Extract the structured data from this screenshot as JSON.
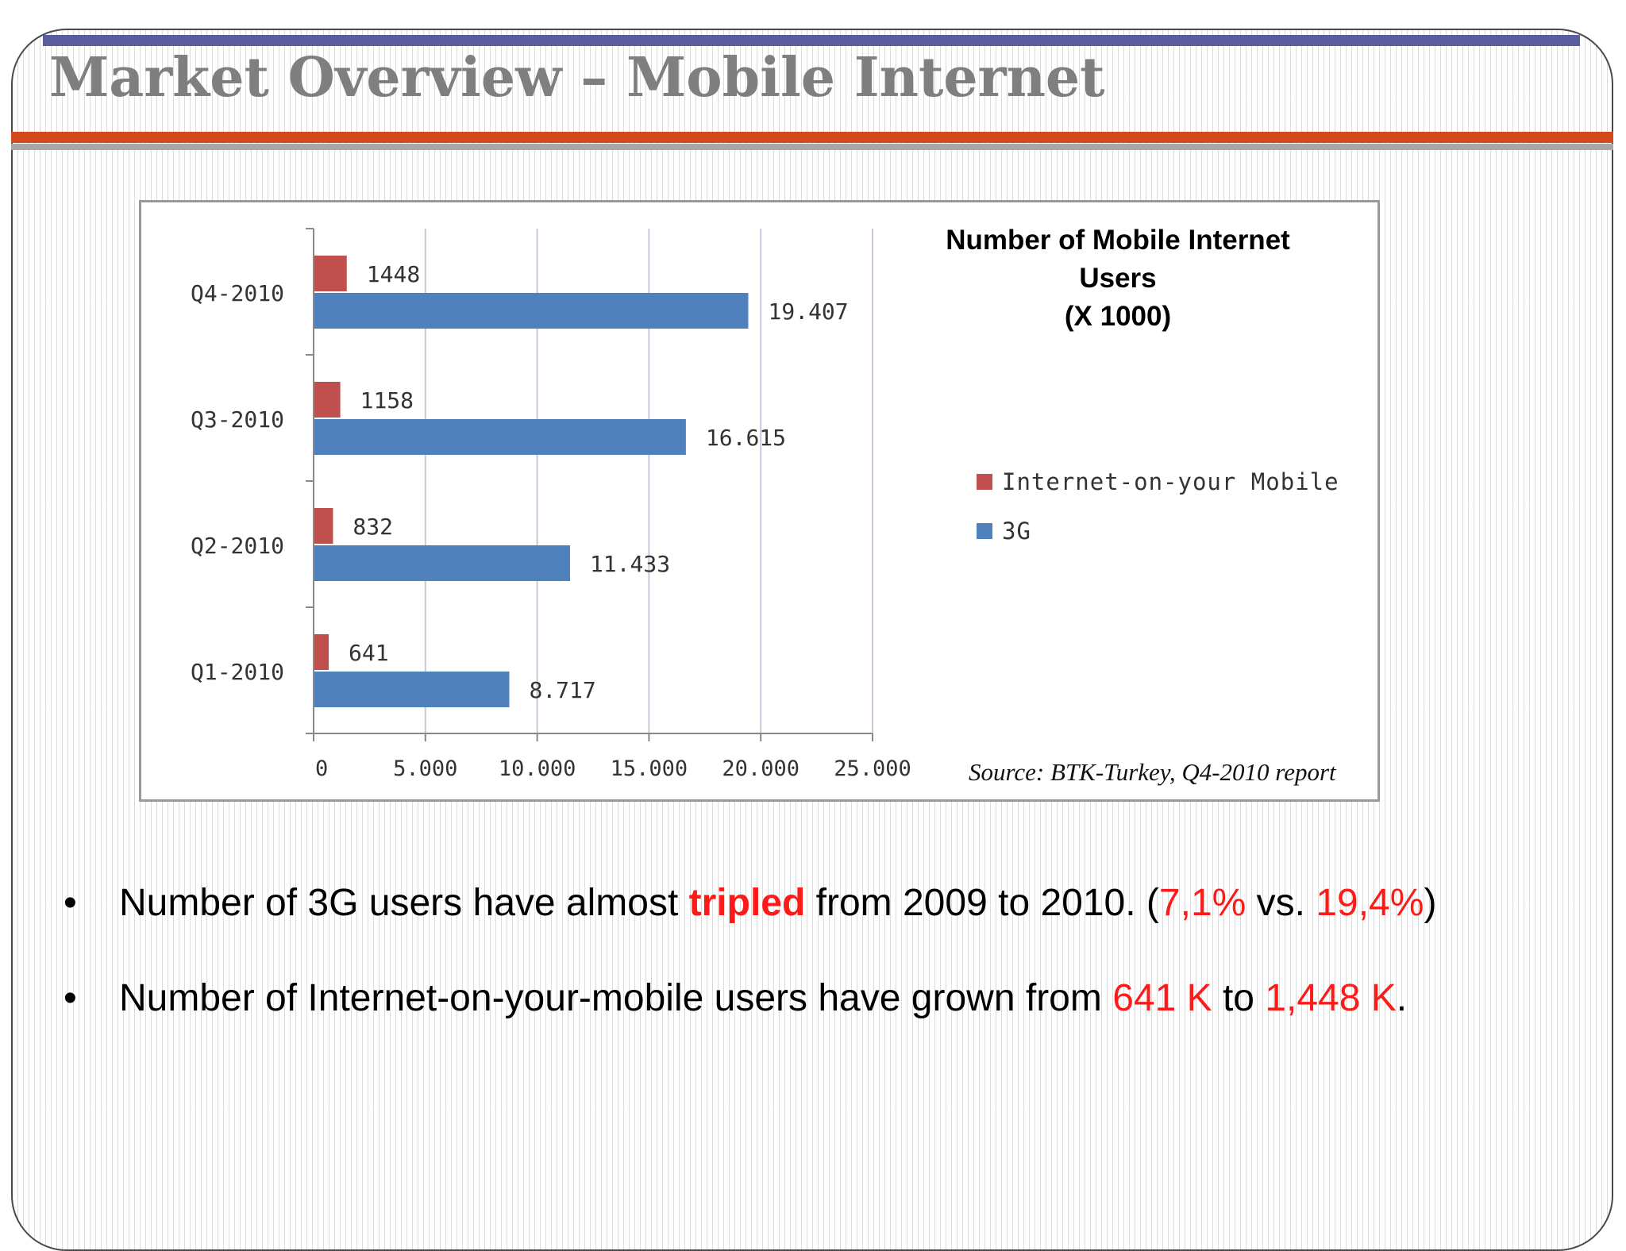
{
  "slide": {
    "title": "Market Overview – Mobile Internet"
  },
  "colors": {
    "purple_bar": "#5a5e9e",
    "orange_bar": "#d24a1d",
    "gray_bar": "#a7a7a7",
    "title_gray": "#7f7f7f",
    "highlight_red": "#ff1a1a"
  },
  "chart_data": {
    "type": "bar",
    "orientation": "horizontal",
    "title_lines": [
      "Number of Mobile Internet",
      "Users",
      "(X 1000)"
    ],
    "categories": [
      "Q4-2010",
      "Q3-2010",
      "Q2-2010",
      "Q1-2010"
    ],
    "series": [
      {
        "name": "Internet-on-your Mobile",
        "color": "#c0504d",
        "values": [
          1448,
          1158,
          832,
          641
        ],
        "labels": [
          "1448",
          "1158",
          "832",
          "641"
        ]
      },
      {
        "name": "3G",
        "color": "#4f81bd",
        "values": [
          19407,
          16615,
          11433,
          8717
        ],
        "labels": [
          "19.407",
          "16.615",
          "11.433",
          "8.717"
        ]
      }
    ],
    "xlim": [
      0,
      25000
    ],
    "xticks": [
      0,
      5000,
      10000,
      15000,
      20000,
      25000
    ],
    "xtick_labels": [
      "0",
      "5.000",
      "10.000",
      "15.000",
      "20.000",
      "25.000"
    ],
    "grid": "vertical",
    "legend_position": "right",
    "source": "Source: BTK-Turkey, Q4-2010 report"
  },
  "bullets": [
    {
      "dot": "•",
      "pre": "Number of 3G users have almost ",
      "emph": "tripled",
      "mid": " from 2009 to 2010. (",
      "v1": "7,1%",
      "vs": " vs. ",
      "v2": "19,4%",
      "post": ")"
    },
    {
      "dot": "•",
      "pre": "Number of Internet-on-your-mobile users have grown from ",
      "v1": "641 K",
      "mid": " to ",
      "v2": "1,448 K",
      "post": "."
    }
  ]
}
